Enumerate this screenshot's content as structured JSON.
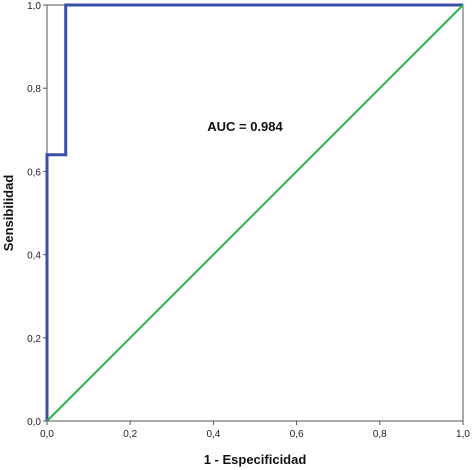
{
  "chart_data": {
    "type": "line",
    "xlabel": "1 - Especificidad",
    "ylabel": "Sensibilidad",
    "xlim": [
      0,
      1
    ],
    "ylim": [
      0,
      1
    ],
    "x_ticks": [
      "0,0",
      "0,2",
      "0,4",
      "0,6",
      "0,8",
      "1,0"
    ],
    "y_ticks": [
      "0,0",
      "0,2",
      "0,4",
      "0,6",
      "0,8",
      "1,0"
    ],
    "annotation": "AUC = 0.984",
    "grid": false,
    "series": [
      {
        "color": "#3a4fa8",
        "x": [
          0,
          0,
          0.045,
          0.045,
          0.045,
          0.045,
          1.0
        ],
        "y": [
          0,
          0.64,
          0.64,
          0.64,
          1.0,
          1.0,
          1.0
        ]
      },
      {
        "color": "#2db34a",
        "x": [
          0,
          1
        ],
        "y": [
          0,
          1
        ]
      }
    ]
  }
}
